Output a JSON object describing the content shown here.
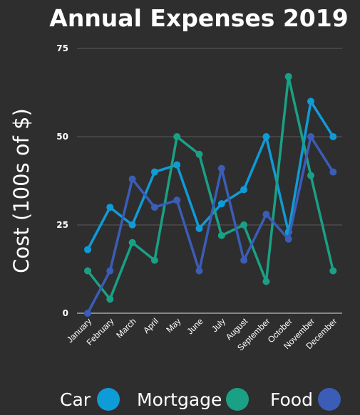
{
  "chart_data": {
    "type": "line",
    "title": "Annual Expenses 2019",
    "xlabel": "",
    "ylabel": "Cost (100s of $)",
    "ylim": [
      0,
      75
    ],
    "yticks": [
      0,
      25,
      50,
      75
    ],
    "categories": [
      "January",
      "February",
      "March",
      "April",
      "May",
      "June",
      "July",
      "August",
      "September",
      "October",
      "November",
      "December"
    ],
    "series": [
      {
        "name": "Car",
        "color": "#0f9bd7",
        "values": [
          18,
          30,
          25,
          40,
          42,
          24,
          31,
          35,
          50,
          23,
          60,
          50
        ]
      },
      {
        "name": "Mortgage",
        "color": "#1aa085",
        "values": [
          12,
          4,
          20,
          15,
          50,
          45,
          22,
          25,
          9,
          67,
          39,
          12
        ]
      },
      {
        "name": "Food",
        "color": "#3b5db8",
        "values": [
          0,
          12,
          38,
          30,
          32,
          12,
          41,
          15,
          28,
          21,
          50,
          40
        ]
      }
    ],
    "legend_position": "bottom",
    "grid": true
  }
}
